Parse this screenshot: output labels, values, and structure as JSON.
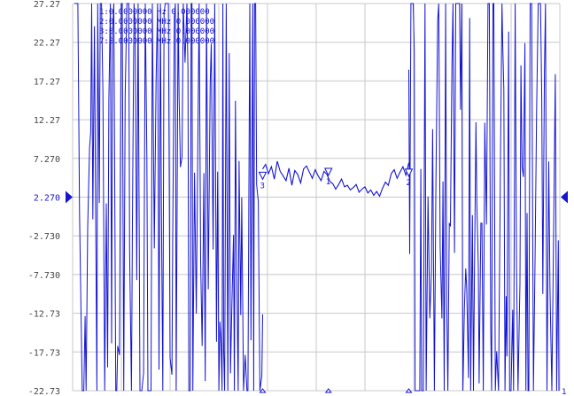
{
  "chart_data": {
    "type": "line",
    "title": "",
    "xlabel": "",
    "ylabel": "",
    "ylim": [
      -22.73,
      27.27
    ],
    "y_ticks": [
      "27.27",
      "22.27",
      "17.27",
      "12.27",
      "7.270",
      "2.270",
      "-2.730",
      "-7.730",
      "-12.73",
      "-17.73",
      "-22.73"
    ],
    "reference_level": "2.270",
    "grid": true,
    "x_divisions": 10,
    "series": [
      {
        "quiet_band": {
          "x_start_div": 3.9,
          "x_end_div": 6.9,
          "values": [
            5.9,
            6.5,
            5.3,
            6.2,
            4.6,
            6.9,
            5.6,
            5.0,
            4.4,
            6.0,
            3.8,
            5.7,
            5.2,
            4.1,
            5.9,
            6.3,
            5.5,
            4.7,
            5.8,
            5.0,
            4.4,
            5.6,
            5.2,
            4.3,
            4.0,
            3.3,
            3.9,
            4.6,
            3.6,
            3.8,
            3.2,
            3.5,
            3.9,
            2.9,
            3.3,
            3.6,
            2.8,
            3.2,
            2.5,
            3.0,
            2.4,
            3.4,
            4.2,
            3.8,
            5.3,
            5.8,
            4.7,
            5.5,
            6.2,
            5.1,
            6.7
          ]
        }
      }
    ],
    "markers": [
      {
        "id": "1",
        "label": "1",
        "x_div": 5.25,
        "y": 5.3
      },
      {
        "id": "2",
        "label": "2",
        "x_div": 6.9,
        "y": 5.2
      },
      {
        "id": "3",
        "label": "3",
        "x_div": 3.9,
        "y": 4.8
      }
    ],
    "marker_table": [
      {
        "num": "1",
        "freq": "0.0000000",
        "unit": "Hz",
        "value": "0.000000"
      },
      {
        "num": "2",
        "freq": "0.0000000",
        "unit": "MHz",
        "value": "0.000000"
      },
      {
        "num": "3",
        "freq": "0.0000000",
        "unit": "MHz",
        "value": "0.000000"
      },
      {
        "num": "7",
        "freq": "0.0000000",
        "unit": "MHz",
        "value": "0.000000"
      }
    ],
    "colors": {
      "trace": "#1414d2",
      "grid": "#c8c8c8",
      "axis_text": "#444444",
      "background": "#ffffff"
    },
    "channel_end_marker": "1"
  }
}
